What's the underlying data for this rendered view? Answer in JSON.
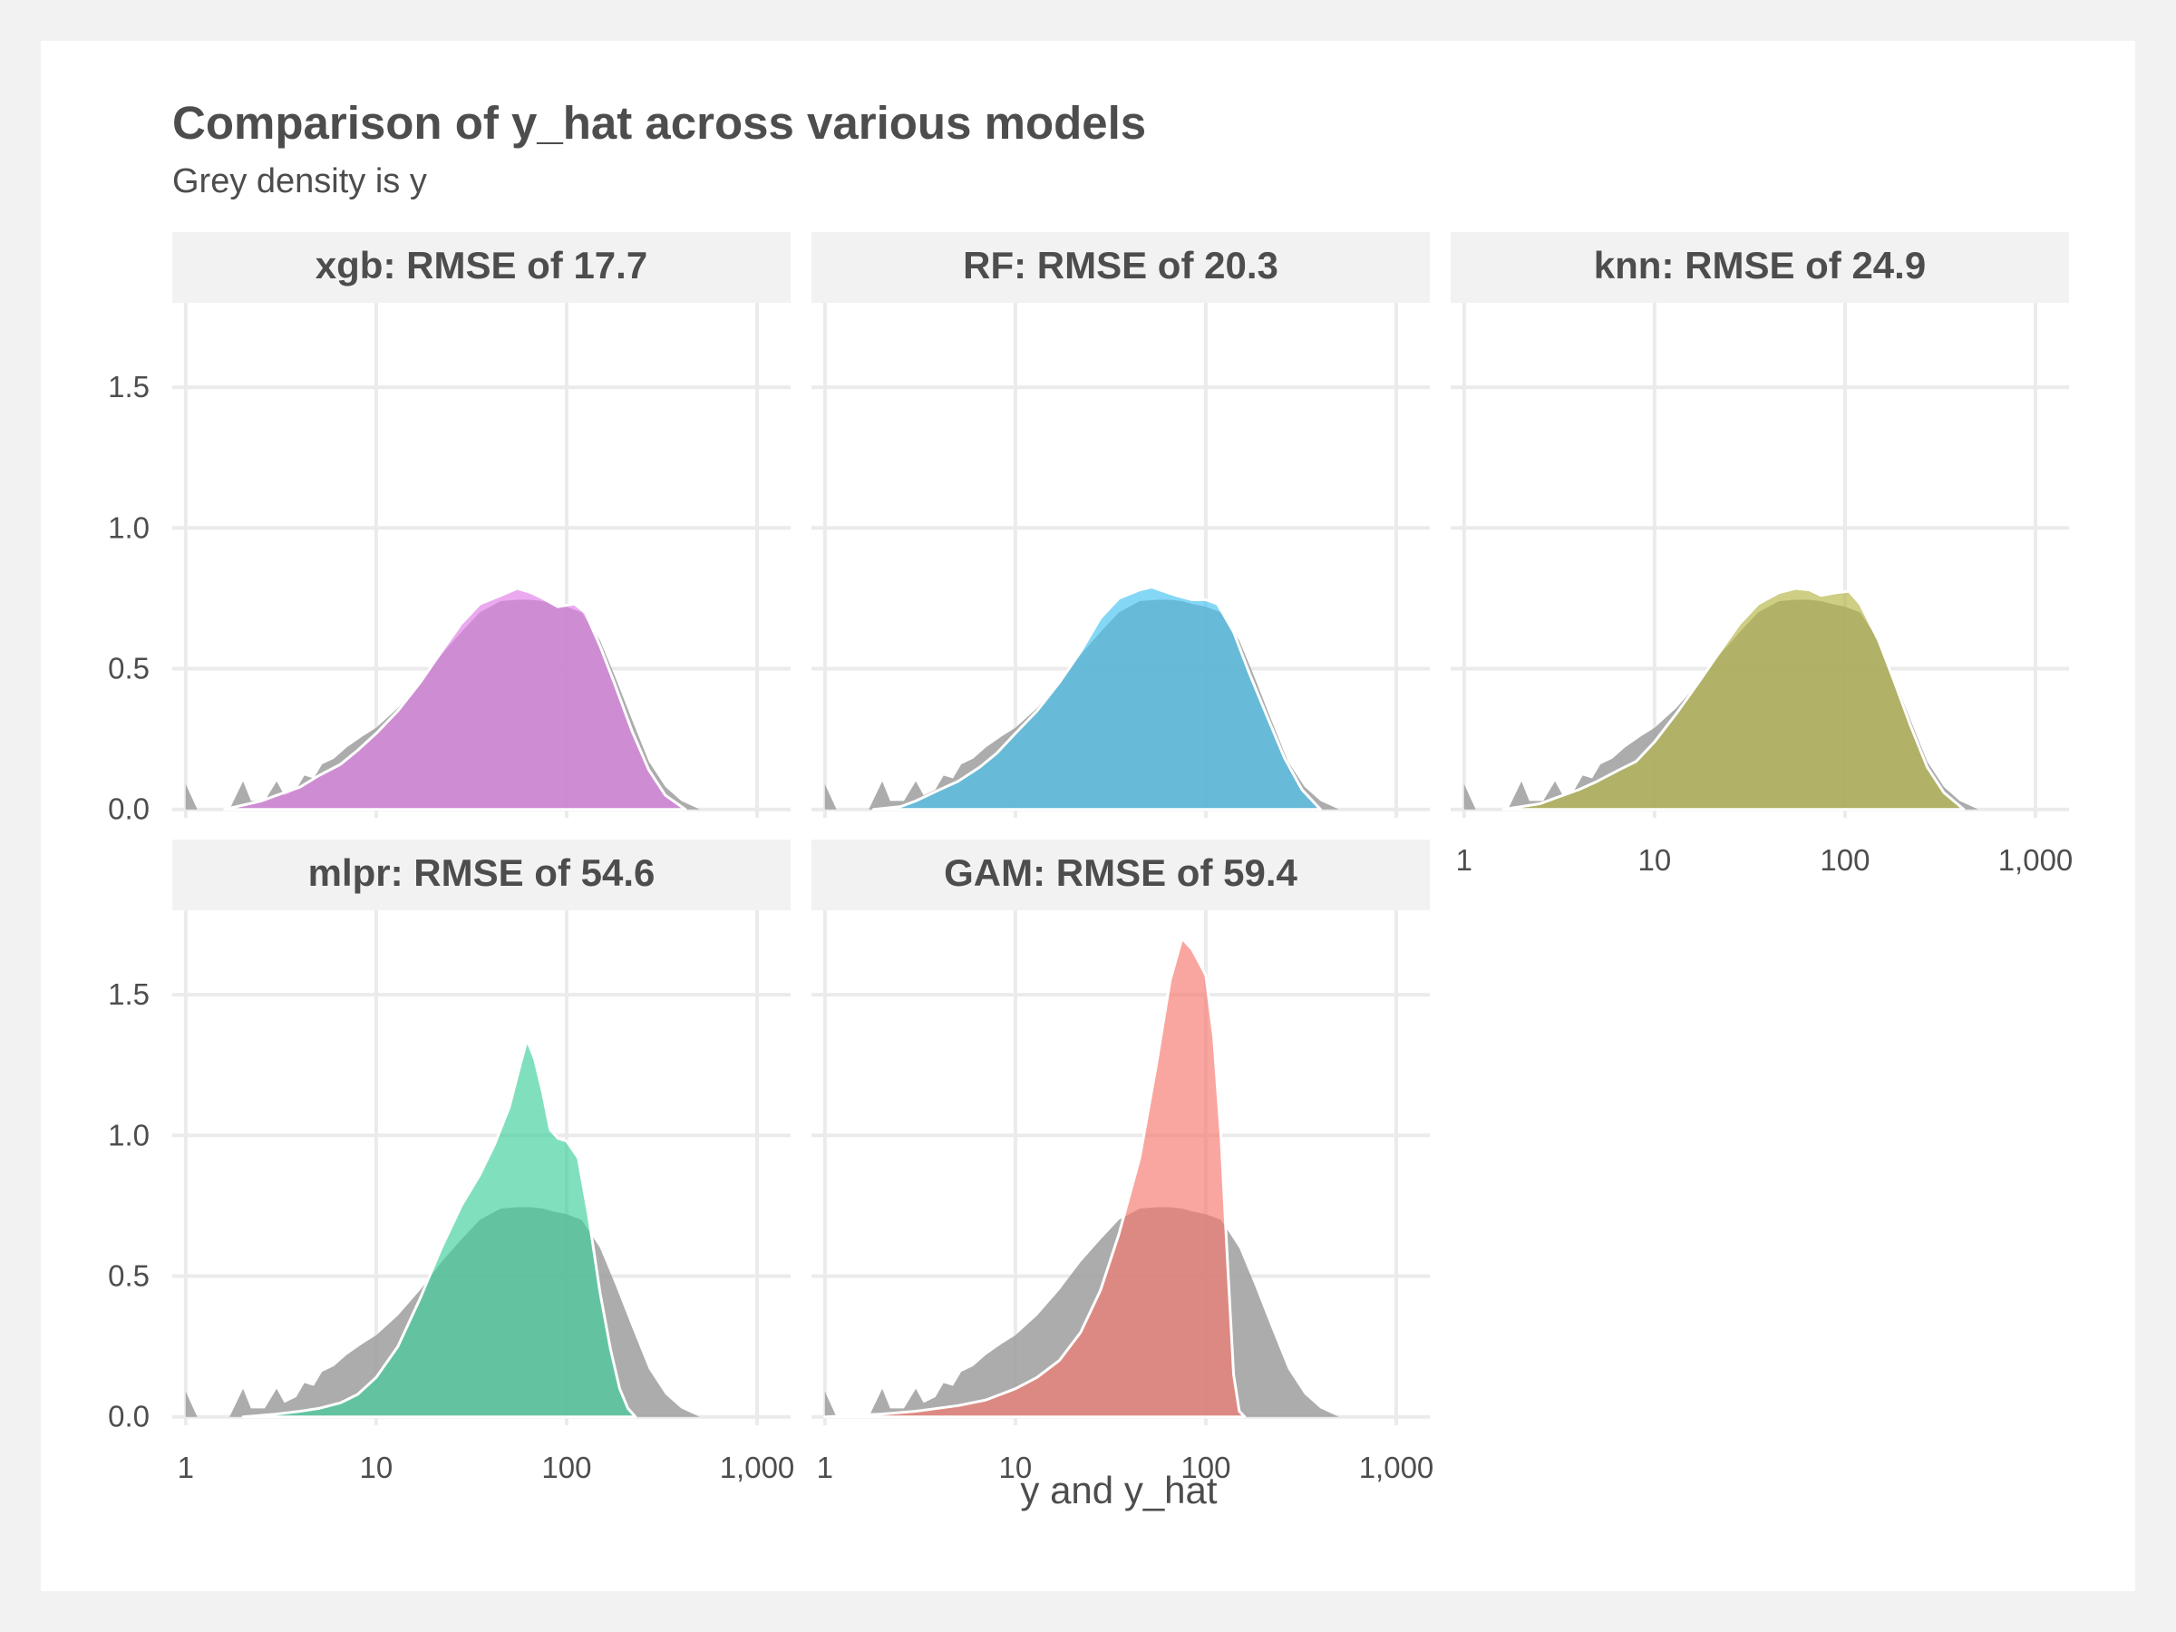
{
  "chart_data": {
    "type": "area",
    "title": "Comparison of y_hat across various models",
    "subtitle": "Grey density is y",
    "xlabel": "y and y_hat",
    "ylabel": "",
    "x_scale": "log10",
    "xlim": [
      0.85,
      1500
    ],
    "ylim": [
      -0.03,
      1.8
    ],
    "x_ticks": [
      1,
      10,
      100,
      1000
    ],
    "x_tick_labels": [
      "1",
      "10",
      "100",
      "1,000"
    ],
    "y_ticks": [
      0.0,
      0.5,
      1.0,
      1.5
    ],
    "y_tick_labels": [
      "0.0",
      "0.5",
      "1.0",
      "1.5"
    ],
    "reference_series": {
      "name": "y",
      "color": "#9e9e9e",
      "points": [
        [
          1.0,
          0.09
        ],
        [
          1.15,
          0.0
        ],
        [
          1.7,
          0.0
        ],
        [
          2.0,
          0.1
        ],
        [
          2.2,
          0.03
        ],
        [
          2.6,
          0.03
        ],
        [
          3.0,
          0.1
        ],
        [
          3.3,
          0.05
        ],
        [
          3.8,
          0.07
        ],
        [
          4.2,
          0.12
        ],
        [
          4.7,
          0.11
        ],
        [
          5.2,
          0.16
        ],
        [
          6.0,
          0.18
        ],
        [
          7.0,
          0.22
        ],
        [
          8.5,
          0.26
        ],
        [
          10.0,
          0.29
        ],
        [
          13.0,
          0.36
        ],
        [
          17.0,
          0.45
        ],
        [
          22.0,
          0.55
        ],
        [
          28.0,
          0.63
        ],
        [
          35.0,
          0.7
        ],
        [
          45.0,
          0.74
        ],
        [
          55.0,
          0.745
        ],
        [
          65.0,
          0.745
        ],
        [
          75.0,
          0.74
        ],
        [
          85.0,
          0.73
        ],
        [
          100.0,
          0.72
        ],
        [
          120.0,
          0.7
        ],
        [
          150.0,
          0.6
        ],
        [
          180.0,
          0.47
        ],
        [
          220.0,
          0.32
        ],
        [
          270.0,
          0.17
        ],
        [
          330.0,
          0.08
        ],
        [
          400.0,
          0.03
        ],
        [
          500.0,
          0.0
        ]
      ]
    },
    "panels": [
      {
        "label": "xgb: RMSE of 17.7",
        "model": "xgb",
        "rmse": 17.7,
        "color": "#e07ce8",
        "points": [
          [
            1.6,
            0.0
          ],
          [
            2.0,
            0.015
          ],
          [
            2.5,
            0.03
          ],
          [
            3.0,
            0.05
          ],
          [
            4.0,
            0.08
          ],
          [
            5.0,
            0.12
          ],
          [
            6.5,
            0.16
          ],
          [
            8.0,
            0.21
          ],
          [
            10.0,
            0.27
          ],
          [
            13.0,
            0.35
          ],
          [
            17.0,
            0.45
          ],
          [
            22.0,
            0.56
          ],
          [
            28.0,
            0.66
          ],
          [
            35.0,
            0.73
          ],
          [
            45.0,
            0.76
          ],
          [
            55.0,
            0.785
          ],
          [
            65.0,
            0.77
          ],
          [
            75.0,
            0.75
          ],
          [
            90.0,
            0.72
          ],
          [
            110.0,
            0.73
          ],
          [
            125.0,
            0.7
          ],
          [
            150.0,
            0.58
          ],
          [
            180.0,
            0.44
          ],
          [
            220.0,
            0.28
          ],
          [
            270.0,
            0.14
          ],
          [
            330.0,
            0.05
          ],
          [
            420.0,
            0.0
          ]
        ]
      },
      {
        "label": "RF: RMSE of 20.3",
        "model": "RF",
        "color": "#42c3ef",
        "rmse": 20.3,
        "points": [
          [
            1.8,
            0.0
          ],
          [
            2.5,
            0.01
          ],
          [
            3.0,
            0.03
          ],
          [
            4.0,
            0.07
          ],
          [
            5.0,
            0.1
          ],
          [
            6.5,
            0.15
          ],
          [
            8.0,
            0.2
          ],
          [
            10.0,
            0.27
          ],
          [
            13.0,
            0.35
          ],
          [
            17.0,
            0.45
          ],
          [
            22.0,
            0.56
          ],
          [
            28.0,
            0.68
          ],
          [
            35.0,
            0.75
          ],
          [
            45.0,
            0.78
          ],
          [
            52.0,
            0.79
          ],
          [
            60.0,
            0.775
          ],
          [
            70.0,
            0.76
          ],
          [
            85.0,
            0.745
          ],
          [
            100.0,
            0.745
          ],
          [
            115.0,
            0.73
          ],
          [
            140.0,
            0.63
          ],
          [
            170.0,
            0.48
          ],
          [
            210.0,
            0.33
          ],
          [
            260.0,
            0.18
          ],
          [
            320.0,
            0.07
          ],
          [
            400.0,
            0.0
          ]
        ]
      },
      {
        "label": "knn: RMSE of 24.9",
        "model": "knn",
        "color": "#b4b442",
        "rmse": 24.9,
        "points": [
          [
            1.6,
            0.0
          ],
          [
            2.0,
            0.01
          ],
          [
            2.5,
            0.02
          ],
          [
            3.0,
            0.04
          ],
          [
            4.0,
            0.07
          ],
          [
            5.0,
            0.1
          ],
          [
            6.5,
            0.14
          ],
          [
            8.0,
            0.17
          ],
          [
            10.0,
            0.24
          ],
          [
            13.0,
            0.34
          ],
          [
            17.0,
            0.45
          ],
          [
            22.0,
            0.56
          ],
          [
            28.0,
            0.66
          ],
          [
            35.0,
            0.73
          ],
          [
            45.0,
            0.77
          ],
          [
            55.0,
            0.785
          ],
          [
            65.0,
            0.78
          ],
          [
            75.0,
            0.76
          ],
          [
            90.0,
            0.77
          ],
          [
            105.0,
            0.775
          ],
          [
            120.0,
            0.73
          ],
          [
            150.0,
            0.6
          ],
          [
            180.0,
            0.46
          ],
          [
            220.0,
            0.3
          ],
          [
            270.0,
            0.15
          ],
          [
            330.0,
            0.06
          ],
          [
            420.0,
            0.0
          ]
        ]
      },
      {
        "label": "mlpr: RMSE of 54.6",
        "model": "mlpr",
        "color": "#3ccf9a",
        "rmse": 54.6,
        "points": [
          [
            2.0,
            0.0
          ],
          [
            3.0,
            0.01
          ],
          [
            4.0,
            0.02
          ],
          [
            5.0,
            0.03
          ],
          [
            6.5,
            0.05
          ],
          [
            8.0,
            0.08
          ],
          [
            10.0,
            0.14
          ],
          [
            13.0,
            0.25
          ],
          [
            17.0,
            0.42
          ],
          [
            22.0,
            0.6
          ],
          [
            28.0,
            0.75
          ],
          [
            35.0,
            0.86
          ],
          [
            42.0,
            0.97
          ],
          [
            50.0,
            1.1
          ],
          [
            57.0,
            1.25
          ],
          [
            62.0,
            1.34
          ],
          [
            68.0,
            1.27
          ],
          [
            75.0,
            1.15
          ],
          [
            82.0,
            1.02
          ],
          [
            90.0,
            0.99
          ],
          [
            100.0,
            0.98
          ],
          [
            115.0,
            0.92
          ],
          [
            130.0,
            0.72
          ],
          [
            150.0,
            0.44
          ],
          [
            170.0,
            0.24
          ],
          [
            190.0,
            0.1
          ],
          [
            210.0,
            0.03
          ],
          [
            230.0,
            0.0
          ]
        ]
      },
      {
        "label": "GAM: RMSE of 59.4",
        "model": "GAM",
        "color": "#f8766d",
        "rmse": 59.4,
        "points": [
          [
            1.0,
            0.0
          ],
          [
            2.0,
            0.01
          ],
          [
            3.0,
            0.02
          ],
          [
            5.0,
            0.04
          ],
          [
            7.0,
            0.06
          ],
          [
            10.0,
            0.1
          ],
          [
            13.0,
            0.14
          ],
          [
            17.0,
            0.2
          ],
          [
            22.0,
            0.3
          ],
          [
            28.0,
            0.45
          ],
          [
            35.0,
            0.65
          ],
          [
            45.0,
            0.92
          ],
          [
            55.0,
            1.25
          ],
          [
            65.0,
            1.55
          ],
          [
            75.0,
            1.7
          ],
          [
            85.0,
            1.66
          ],
          [
            100.0,
            1.57
          ],
          [
            110.0,
            1.35
          ],
          [
            120.0,
            1.0
          ],
          [
            130.0,
            0.55
          ],
          [
            140.0,
            0.15
          ],
          [
            150.0,
            0.02
          ],
          [
            160.0,
            0.0
          ]
        ]
      }
    ]
  }
}
